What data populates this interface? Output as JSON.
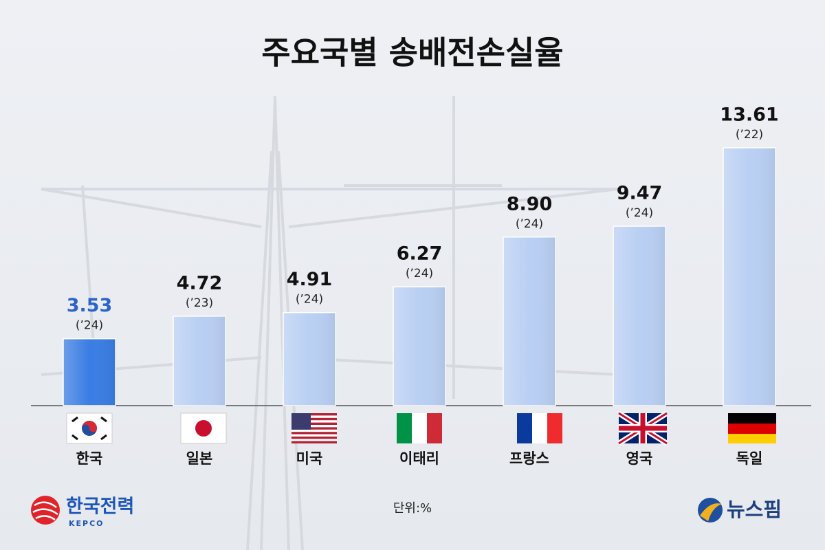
{
  "chart_data": {
    "type": "bar",
    "title": "주요국별 송배전손실율",
    "categories": [
      "한국",
      "일본",
      "미국",
      "이태리",
      "프랑스",
      "영국",
      "독일"
    ],
    "values": [
      3.53,
      4.72,
      4.91,
      6.27,
      8.9,
      9.47,
      13.61
    ],
    "value_labels": [
      "3.53",
      "4.72",
      "4.91",
      "6.27",
      "8.90",
      "9.47",
      "13.61"
    ],
    "years": [
      "(’24)",
      "(’23)",
      "(’24)",
      "(’24)",
      "(’24)",
      "(’24)",
      "(’22)"
    ],
    "colors": [
      "#3a7de3",
      "#b9cff3",
      "#b9cff3",
      "#b9cff3",
      "#b9cff3",
      "#b9cff3",
      "#b9cff3"
    ],
    "label_colors": [
      "#2a63c9",
      "#111111",
      "#111111",
      "#111111",
      "#111111",
      "#111111",
      "#111111"
    ],
    "unit": "단위:%"
  },
  "branding": {
    "left": "한국전력",
    "left_sub": "KEPCO",
    "right": "뉴스핌"
  }
}
